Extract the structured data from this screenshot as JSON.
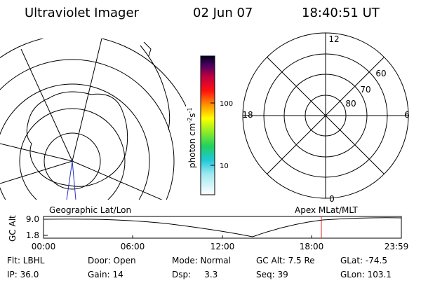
{
  "header": {
    "title": "Ultraviolet Imager",
    "date": "02 Jun 07",
    "time": "18:40:51 UT"
  },
  "colorbar": {
    "label_parts": [
      "photon cm",
      "-2",
      "s",
      "-1"
    ],
    "ticks": [
      "100",
      "10"
    ]
  },
  "polar": {
    "hour_labels": [
      "12",
      "6",
      "0",
      "18"
    ],
    "lat_labels": [
      "60",
      "70",
      "80"
    ]
  },
  "timeline": {
    "left_label": "Geographic Lat/Lon",
    "right_label": "Apex MLat/MLT",
    "y_label": "GC Alt",
    "y_ticks": [
      "9.0",
      "1.8"
    ],
    "x_ticks": [
      "00:00",
      "06:00",
      "12:00",
      "18:00",
      "23:59"
    ]
  },
  "footer": {
    "rows": [
      [
        "Flt: LBHL",
        "Door: Open",
        "Mode: Normal",
        "GC Alt: 7.5 Re",
        "GLat: -74.5"
      ],
      [
        "IP: 36.0",
        "Gain: 14",
        "Dsp:     3.3",
        "Seq: 39",
        "GLon: 103.1"
      ]
    ]
  }
}
